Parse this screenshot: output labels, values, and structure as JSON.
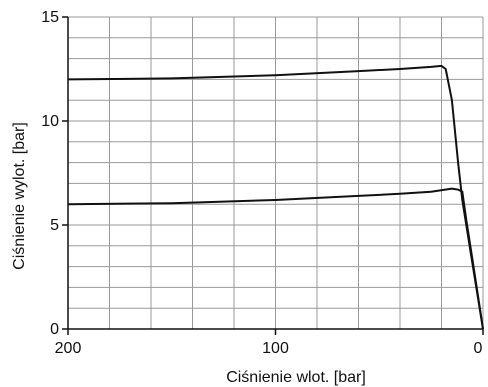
{
  "chart_data": {
    "type": "line",
    "xlabel": "Ciśnienie wlot. [bar]",
    "ylabel": "Ciśnienie wylot. [bar]",
    "x_reversed": true,
    "xlim": [
      0,
      200
    ],
    "ylim": [
      0,
      15
    ],
    "xticks": [
      "200",
      "100",
      "0"
    ],
    "xtick_values": [
      200,
      100,
      0
    ],
    "yticks": [
      "0",
      "5",
      "10",
      "15"
    ],
    "ytick_values": [
      0,
      5,
      10,
      15
    ],
    "grid": true,
    "x_grid_step": 20,
    "y_grid_step": 1,
    "colors": {
      "line": "#111111",
      "grid": "#9a9a9a",
      "axis": "#111111"
    },
    "series": [
      {
        "x": [
          200,
          150,
          100,
          60,
          40,
          25,
          20,
          18,
          15,
          12,
          10,
          5,
          0
        ],
        "y": [
          12.0,
          12.05,
          12.2,
          12.4,
          12.5,
          12.6,
          12.65,
          12.5,
          11.0,
          8.0,
          6.2,
          3.1,
          0
        ]
      },
      {
        "x": [
          200,
          150,
          100,
          60,
          40,
          25,
          15,
          12,
          10,
          8,
          5,
          0
        ],
        "y": [
          6.0,
          6.05,
          6.2,
          6.4,
          6.5,
          6.6,
          6.75,
          6.7,
          6.6,
          5.2,
          3.3,
          0
        ]
      }
    ]
  }
}
